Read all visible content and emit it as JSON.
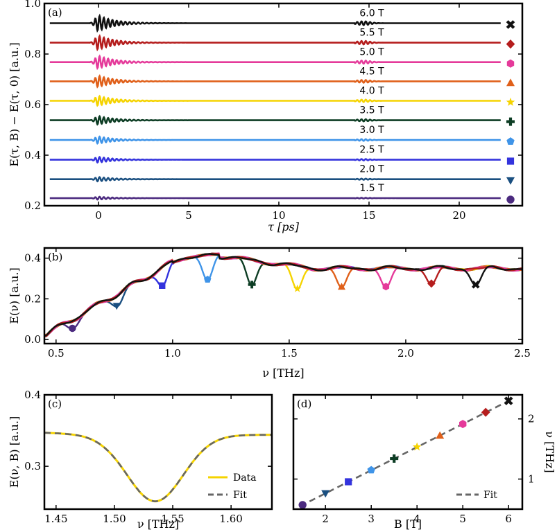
{
  "colors": {
    "1.5": "#4b2a7f",
    "2.0": "#1a4f80",
    "2.5": "#3333dd",
    "3.0": "#3f94e8",
    "3.5": "#0d3d24",
    "4.0": "#f5d300",
    "4.5": "#e0601a",
    "5.0": "#e53a9a",
    "5.5": "#b51d1d",
    "6.0": "#111111",
    "data_line": "#f5d300",
    "fit_line": "#666666"
  },
  "markers": {
    "1.5": "circle",
    "2.0": "triangle-down",
    "2.5": "square",
    "3.0": "pentagon",
    "3.5": "plus",
    "4.0": "star",
    "4.5": "triangle-up",
    "5.0": "hexagon",
    "5.5": "diamond",
    "6.0": "x"
  },
  "chart_data": [
    {
      "panel": "(a)",
      "type": "line",
      "xlabel": "τ [ps]",
      "ylabel": "E(τ, B) − E(τ, 0) [a.u.]",
      "xlim": [
        -3,
        23.5
      ],
      "ylim": [
        0.2,
        1.0
      ],
      "xticks": [
        0,
        5,
        10,
        15,
        20
      ],
      "yticks": [
        0.2,
        0.4,
        0.6,
        0.8,
        1.0
      ],
      "ytick_labels": [
        "0.2",
        "0.4",
        "0.6",
        "0.8",
        "1.0"
      ],
      "series": [
        {
          "key": "1.5",
          "name": "1.5 T",
          "offset": 0.23
        },
        {
          "key": "2.0",
          "name": "2.0 T",
          "offset": 0.305
        },
        {
          "key": "2.5",
          "name": "2.5 T",
          "offset": 0.382
        },
        {
          "key": "3.0",
          "name": "3.0 T",
          "offset": 0.46
        },
        {
          "key": "3.5",
          "name": "3.5 T",
          "offset": 0.538
        },
        {
          "key": "4.0",
          "name": "4.0 T",
          "offset": 0.615
        },
        {
          "key": "4.5",
          "name": "4.5 T",
          "offset": 0.692
        },
        {
          "key": "5.0",
          "name": "5.0 T",
          "offset": 0.768
        },
        {
          "key": "5.5",
          "name": "5.5 T",
          "offset": 0.845
        },
        {
          "key": "6.0",
          "name": "6.0 T",
          "offset": 0.922
        }
      ]
    },
    {
      "panel": "(b)",
      "type": "line",
      "xlabel": "ν [THz]",
      "ylabel": "E(ν) [a.u.]",
      "xlim": [
        0.45,
        2.5
      ],
      "ylim": [
        -0.02,
        0.45
      ],
      "xticks": [
        0.5,
        1.0,
        1.5,
        2.0,
        2.5
      ],
      "xtick_labels": [
        "0.5",
        "1.0",
        "1.5",
        "2.0",
        "2.5"
      ],
      "yticks": [
        0.0,
        0.2,
        0.4
      ],
      "ytick_labels": [
        "0.0",
        "0.2",
        "0.4"
      ],
      "series": [
        {
          "key": "1.5",
          "dip_x": 0.57,
          "dip_y": 0.055
        },
        {
          "key": "2.0",
          "dip_x": 0.76,
          "dip_y": 0.165
        },
        {
          "key": "2.5",
          "dip_x": 0.955,
          "dip_y": 0.265
        },
        {
          "key": "3.0",
          "dip_x": 1.15,
          "dip_y": 0.295
        },
        {
          "key": "3.5",
          "dip_x": 1.34,
          "dip_y": 0.27
        },
        {
          "key": "4.0",
          "dip_x": 1.535,
          "dip_y": 0.25
        },
        {
          "key": "4.5",
          "dip_x": 1.725,
          "dip_y": 0.26
        },
        {
          "key": "5.0",
          "dip_x": 1.915,
          "dip_y": 0.26
        },
        {
          "key": "5.5",
          "dip_x": 2.11,
          "dip_y": 0.275
        },
        {
          "key": "6.0",
          "dip_x": 2.3,
          "dip_y": 0.27
        }
      ]
    },
    {
      "panel": "(c)",
      "type": "line",
      "xlabel": "ν [THz]",
      "ylabel": "E(ν, B) [a.u.]",
      "xlim": [
        1.44,
        1.635
      ],
      "ylim": [
        0.24,
        0.4
      ],
      "xticks": [
        1.45,
        1.5,
        1.55,
        1.6
      ],
      "xtick_labels": [
        "1.45",
        "1.50",
        "1.55",
        "1.60"
      ],
      "yticks": [
        0.3,
        0.4
      ],
      "ytick_labels": [
        "0.3",
        "0.4"
      ],
      "dip_center": 1.535,
      "dip_min": 0.251,
      "baseline": 0.344,
      "legend": [
        "Data",
        "Fit"
      ]
    },
    {
      "panel": "(d)",
      "type": "scatter",
      "xlabel": "B [T]",
      "ylabel": "ν [THz]",
      "xlim": [
        1.3,
        6.3
      ],
      "ylim": [
        0.5,
        2.4
      ],
      "xticks": [
        2,
        3,
        4,
        5,
        6
      ],
      "yticks": [
        1,
        2
      ],
      "points": [
        {
          "key": "1.5",
          "x": 1.5,
          "y": 0.57
        },
        {
          "key": "2.0",
          "x": 2.0,
          "y": 0.76
        },
        {
          "key": "2.5",
          "x": 2.5,
          "y": 0.955
        },
        {
          "key": "3.0",
          "x": 3.0,
          "y": 1.15
        },
        {
          "key": "3.5",
          "x": 3.5,
          "y": 1.34
        },
        {
          "key": "4.0",
          "x": 4.0,
          "y": 1.535
        },
        {
          "key": "4.5",
          "x": 4.5,
          "y": 1.725
        },
        {
          "key": "5.0",
          "x": 5.0,
          "y": 1.915
        },
        {
          "key": "5.5",
          "x": 5.5,
          "y": 2.11
        },
        {
          "key": "6.0",
          "x": 6.0,
          "y": 2.3
        }
      ],
      "legend": [
        "Fit"
      ]
    }
  ]
}
